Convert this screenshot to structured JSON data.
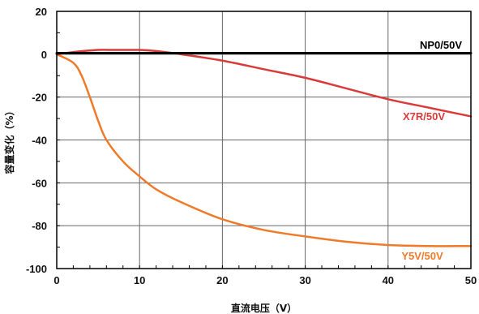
{
  "chart_data": {
    "type": "line",
    "xlabel": "直流电压（V）",
    "ylabel": "容量变化（%）",
    "xlim": [
      0,
      50
    ],
    "ylim": [
      -100,
      20
    ],
    "x_ticks": [
      "0",
      "10",
      "20",
      "30",
      "40",
      "50"
    ],
    "y_ticks": [
      "20",
      "0",
      "-20",
      "-40",
      "-60",
      "-80",
      "-100"
    ],
    "grid": true,
    "series": [
      {
        "name": "NP0/50V",
        "color": "#000000",
        "x": [
          0,
          10,
          20,
          30,
          40,
          50
        ],
        "y": [
          0.5,
          0.5,
          0.5,
          0.5,
          0.5,
          0.5
        ]
      },
      {
        "name": "X7R/50V",
        "color": "#d93a3a",
        "x": [
          0,
          2,
          5,
          7,
          10,
          12,
          15,
          20,
          25,
          30,
          35,
          40,
          45,
          50
        ],
        "y": [
          0,
          1,
          2,
          2,
          2,
          1.5,
          0,
          -3,
          -7,
          -11,
          -16,
          -21,
          -25,
          -29
        ]
      },
      {
        "name": "Y5V/50V",
        "color": "#ee7a2a",
        "x": [
          0,
          2,
          3,
          4,
          5,
          6,
          8,
          10,
          12,
          15,
          20,
          25,
          30,
          35,
          40,
          45,
          50
        ],
        "y": [
          0,
          -4,
          -10,
          -20,
          -31,
          -40,
          -50,
          -57,
          -63,
          -69,
          -77,
          -82,
          -85,
          -87.5,
          -89,
          -89.5,
          -89.5
        ]
      }
    ]
  }
}
